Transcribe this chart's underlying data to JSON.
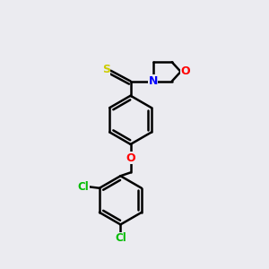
{
  "bg_color": "#ebebf0",
  "line_color": "#000000",
  "bond_lw": 1.8,
  "atom_colors": {
    "S": "#cccc00",
    "N": "#0000ff",
    "O": "#ff0000",
    "Cl": "#00bb00"
  },
  "font_size": 8.5,
  "fig_size": [
    3.0,
    3.0
  ],
  "dpi": 100,
  "xlim": [
    0,
    10
  ],
  "ylim": [
    0,
    10
  ]
}
